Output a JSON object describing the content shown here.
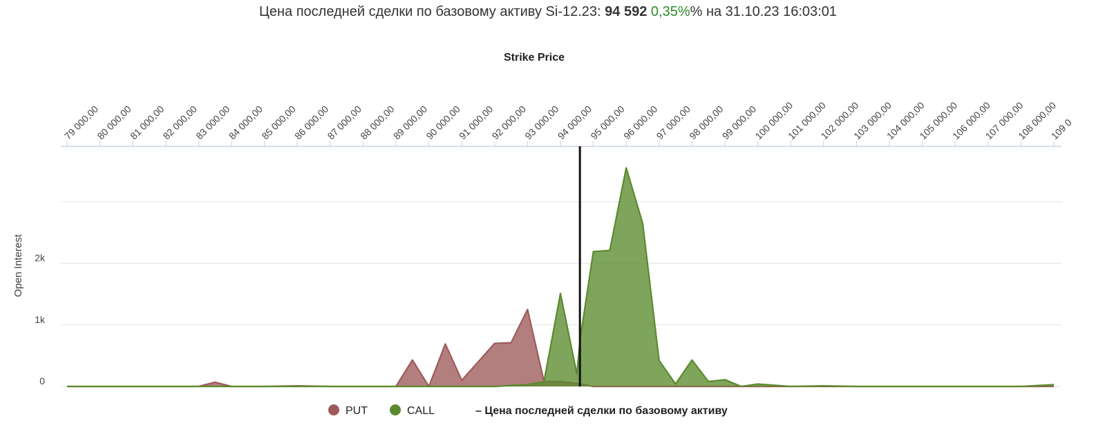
{
  "header": {
    "prefix": "Цена последней сделки по базовому активу Si-12.23: ",
    "price": "94 592",
    "change": "0,35%",
    "suffix": "% на 31.10.23 16:03:01"
  },
  "chart_data": {
    "type": "area",
    "xlabel": "Strike Price",
    "ylabel": "Open Interest",
    "x_ticks": [
      "79 000,00",
      "80 000,00",
      "81 000,00",
      "82 000,00",
      "83 000,00",
      "84 000,00",
      "85 000,00",
      "86 000,00",
      "87 000,00",
      "88 000,00",
      "89 000,00",
      "90 000,00",
      "91 000,00",
      "92 000,00",
      "93 000,00",
      "94 000,00",
      "95 000,00",
      "96 000,00",
      "97 000,00",
      "98 000,00",
      "99 000,00",
      "100 000,00",
      "101 000,00",
      "102 000,00",
      "103 000,00",
      "104 000,00",
      "105 000,00",
      "106 000,00",
      "107 000,00",
      "108 000,00",
      "109 0"
    ],
    "y_ticks": [
      {
        "value": 0,
        "label": "0"
      },
      {
        "value": 1000,
        "label": "1k"
      },
      {
        "value": 2000,
        "label": "2k"
      },
      {
        "value": 3000,
        "label": ""
      },
      {
        "value": 3900,
        "label": ""
      }
    ],
    "xlim": [
      79000,
      109000
    ],
    "ylim": [
      0,
      3900
    ],
    "underlying_price": 94592,
    "series": [
      {
        "name": "PUT",
        "color": "#9e5a5a",
        "x": [
          79000,
          80000,
          81000,
          82000,
          83000,
          83500,
          84000,
          85000,
          86000,
          87000,
          88000,
          89000,
          89500,
          90000,
          90500,
          91000,
          91500,
          92000,
          92500,
          93000,
          93500,
          94000,
          94500,
          95000,
          95500,
          96000,
          97000,
          98000,
          99000,
          100000,
          101000,
          102000,
          103000,
          104000,
          105000,
          106000,
          107000,
          108000,
          109000
        ],
        "values": [
          0,
          0,
          0,
          0,
          0,
          70,
          0,
          0,
          10,
          0,
          0,
          0,
          430,
          0,
          690,
          100,
          400,
          700,
          710,
          1250,
          80,
          80,
          50,
          0,
          0,
          0,
          0,
          0,
          0,
          0,
          0,
          0,
          0,
          0,
          0,
          0,
          0,
          0,
          0
        ]
      },
      {
        "name": "CALL",
        "color": "#5b8a2e",
        "x": [
          79000,
          80000,
          81000,
          82000,
          83000,
          84000,
          85000,
          86000,
          87000,
          88000,
          89000,
          90000,
          91000,
          92000,
          93000,
          93500,
          94000,
          94500,
          94600,
          95000,
          95500,
          96000,
          96500,
          97000,
          97500,
          98000,
          98500,
          99000,
          99500,
          100000,
          100500,
          101000,
          102000,
          103000,
          104000,
          105000,
          106000,
          107000,
          108000,
          109000
        ],
        "values": [
          0,
          0,
          0,
          0,
          0,
          0,
          0,
          0,
          0,
          0,
          0,
          0,
          0,
          0,
          30,
          80,
          1510,
          200,
          770,
          2190,
          2210,
          3550,
          2650,
          420,
          40,
          430,
          80,
          110,
          0,
          40,
          20,
          0,
          10,
          0,
          0,
          0,
          0,
          0,
          0,
          30
        ]
      }
    ]
  },
  "legend": {
    "put_label": "PUT",
    "call_label": "CALL",
    "line_label": "– Цена последней сделки по базовому активу"
  }
}
